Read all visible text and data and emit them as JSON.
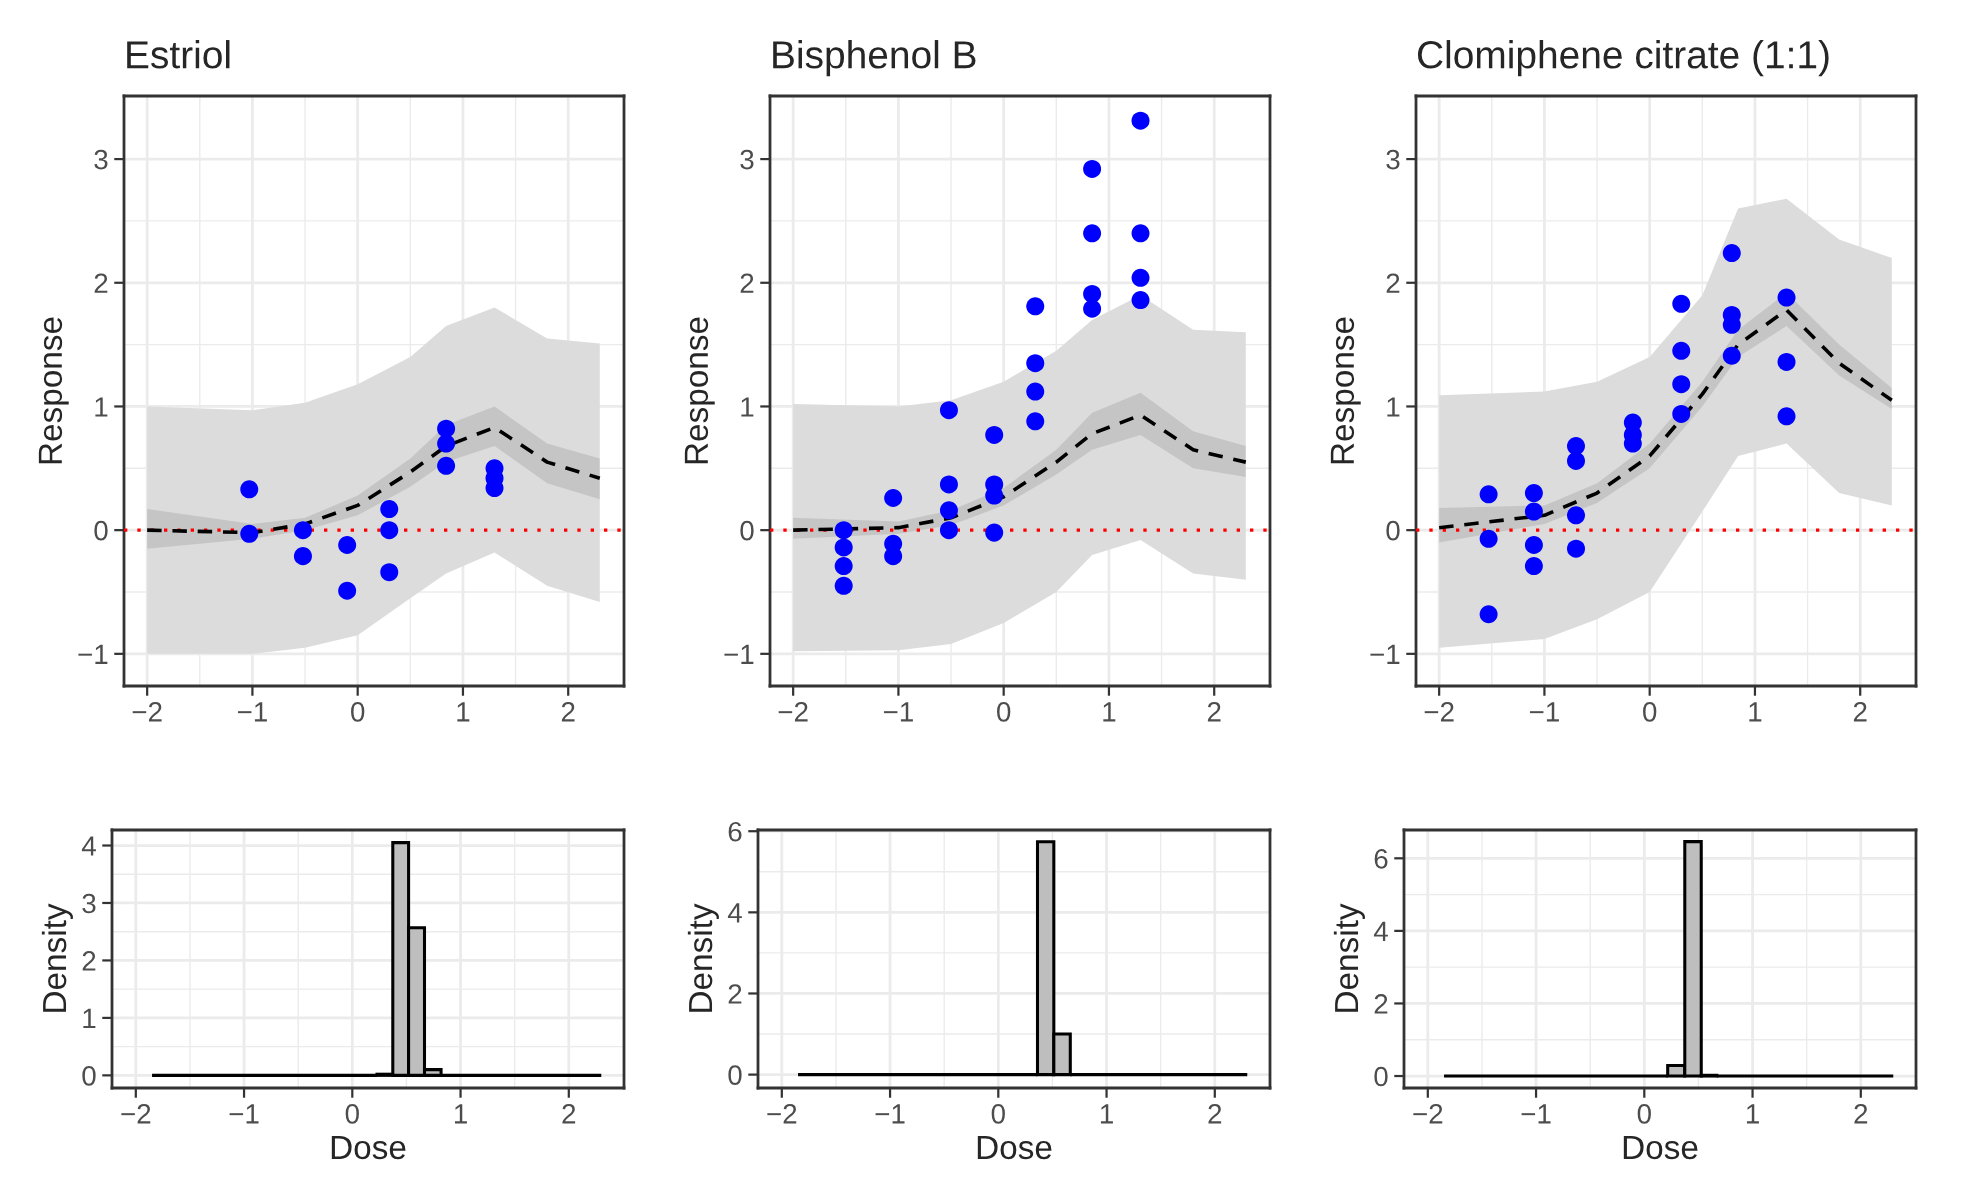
{
  "chart_data": [
    {
      "type": "scatter",
      "title": "Estriol",
      "ylabel": "Response",
      "xlim": [
        -2.22,
        2.53
      ],
      "ylim": [
        -1.26,
        3.51
      ],
      "xticks": [
        -2,
        -1,
        0,
        1,
        2
      ],
      "yticks": [
        -1,
        0,
        1,
        2,
        3
      ],
      "grid": true,
      "ref_lines": [
        {
          "axis": "y",
          "value": 0,
          "color": "#ff0000",
          "line_style": "dotted"
        }
      ],
      "series": [
        {
          "type": "line",
          "color": "#dcdcdc",
          "x": [
            -2,
            -1,
            -0.5,
            0,
            0.5,
            0.84,
            1.3,
            1.8,
            2.3
          ],
          "values": [
            null,
            null,
            null,
            null,
            null,
            null,
            null,
            null,
            null
          ],
          "lower": [
            -1.0,
            -1.0,
            -0.95,
            -0.85,
            -0.55,
            -0.35,
            -0.18,
            -0.45,
            -0.58
          ],
          "upper": [
            1.0,
            0.97,
            1.03,
            1.18,
            1.4,
            1.65,
            1.8,
            1.55,
            1.51
          ]
        },
        {
          "type": "line",
          "color": "#000000",
          "line_style": "dashed",
          "x": [
            -2,
            -1,
            -0.5,
            0,
            0.5,
            0.84,
            1.3,
            1.8,
            2.3
          ],
          "values": [
            0,
            -0.02,
            0.05,
            0.2,
            0.47,
            0.68,
            0.83,
            0.55,
            0.42
          ],
          "lower": [
            -0.15,
            -0.07,
            0.0,
            0.12,
            0.35,
            0.55,
            0.68,
            0.38,
            0.25
          ],
          "upper": [
            0.17,
            0.05,
            0.1,
            0.28,
            0.58,
            0.85,
            1.0,
            0.7,
            0.58
          ]
        },
        {
          "type": "scatter",
          "color": "#0000ff",
          "marker": "circle",
          "x": [
            -1.03,
            -1.03,
            -0.52,
            -0.52,
            -0.1,
            -0.1,
            0.3,
            0.3,
            0.3,
            0.84,
            0.84,
            0.84,
            1.3,
            1.3,
            1.3
          ],
          "values": [
            0.33,
            -0.03,
            0.0,
            -0.21,
            -0.12,
            -0.49,
            0.17,
            0.0,
            -0.34,
            0.82,
            0.7,
            0.52,
            0.5,
            0.42,
            0.34
          ]
        }
      ]
    },
    {
      "type": "scatter",
      "title": "Bisphenol B",
      "ylabel": "Response",
      "xlim": [
        -2.22,
        2.53
      ],
      "ylim": [
        -1.26,
        3.51
      ],
      "xticks": [
        -2,
        -1,
        0,
        1,
        2
      ],
      "yticks": [
        -1,
        0,
        1,
        2,
        3
      ],
      "grid": true,
      "ref_lines": [
        {
          "axis": "y",
          "value": 0,
          "color": "#ff0000",
          "line_style": "dotted"
        }
      ],
      "series": [
        {
          "type": "line",
          "color": "#dcdcdc",
          "x": [
            -2,
            -1,
            -0.5,
            0,
            0.5,
            0.84,
            1.3,
            1.8,
            2.3
          ],
          "values": [
            null,
            null,
            null,
            null,
            null,
            null,
            null,
            null,
            null
          ],
          "lower": [
            -0.98,
            -0.97,
            -0.92,
            -0.75,
            -0.5,
            -0.2,
            -0.08,
            -0.35,
            -0.4
          ],
          "upper": [
            1.02,
            1.0,
            1.05,
            1.2,
            1.45,
            1.7,
            1.9,
            1.62,
            1.6
          ]
        },
        {
          "type": "line",
          "color": "#000000",
          "line_style": "dashed",
          "x": [
            -2,
            -1,
            -0.5,
            0,
            0.5,
            0.84,
            1.3,
            1.8,
            2.3
          ],
          "values": [
            0,
            0.02,
            0.1,
            0.27,
            0.55,
            0.78,
            0.93,
            0.65,
            0.55
          ],
          "lower": [
            -0.07,
            -0.03,
            0.04,
            0.2,
            0.45,
            0.65,
            0.77,
            0.5,
            0.43
          ],
          "upper": [
            0.1,
            0.07,
            0.16,
            0.34,
            0.65,
            0.95,
            1.11,
            0.8,
            0.68
          ]
        },
        {
          "type": "scatter",
          "color": "#0000ff",
          "marker": "circle",
          "x": [
            -1.52,
            -1.52,
            -1.52,
            -1.52,
            -1.05,
            -1.05,
            -1.05,
            -0.52,
            -0.52,
            -0.52,
            -0.52,
            -0.09,
            -0.09,
            -0.09,
            -0.09,
            0.3,
            0.3,
            0.3,
            0.3,
            0.84,
            0.84,
            0.84,
            0.84,
            1.3,
            1.3,
            1.3,
            1.3
          ],
          "values": [
            0,
            -0.14,
            -0.29,
            -0.45,
            0.26,
            -0.11,
            -0.21,
            0.97,
            0.37,
            0.16,
            0.0,
            0.77,
            0.37,
            0.28,
            -0.02,
            1.81,
            1.35,
            1.12,
            0.88,
            2.92,
            2.4,
            1.91,
            1.79,
            3.31,
            2.4,
            2.04,
            1.86
          ]
        }
      ]
    },
    {
      "type": "scatter",
      "title": "Clomiphene citrate (1:1)",
      "ylabel": "Response",
      "xlim": [
        -2.22,
        2.53
      ],
      "ylim": [
        -1.26,
        3.51
      ],
      "xticks": [
        -2,
        -1,
        0,
        1,
        2
      ],
      "yticks": [
        -1,
        0,
        1,
        2,
        3
      ],
      "grid": true,
      "ref_lines": [
        {
          "axis": "y",
          "value": 0,
          "color": "#ff0000",
          "line_style": "dotted"
        }
      ],
      "series": [
        {
          "type": "line",
          "color": "#dcdcdc",
          "x": [
            -2,
            -1,
            -0.5,
            0,
            0.5,
            0.84,
            1.3,
            1.8,
            2.3
          ],
          "values": [
            null,
            null,
            null,
            null,
            null,
            null,
            null,
            null,
            null
          ],
          "lower": [
            -0.95,
            -0.88,
            -0.72,
            -0.5,
            0.15,
            0.6,
            0.7,
            0.3,
            0.2
          ],
          "upper": [
            1.09,
            1.12,
            1.2,
            1.4,
            1.9,
            2.6,
            2.68,
            2.35,
            2.2
          ]
        },
        {
          "type": "line",
          "color": "#000000",
          "line_style": "dashed",
          "x": [
            -2,
            -1,
            -0.5,
            0,
            0.5,
            0.84,
            1.3,
            1.8,
            2.3
          ],
          "values": [
            0.02,
            0.12,
            0.3,
            0.6,
            1.1,
            1.5,
            1.78,
            1.35,
            1.05
          ],
          "lower": [
            -0.1,
            0.05,
            0.22,
            0.5,
            1.0,
            1.4,
            1.65,
            1.25,
            0.98
          ],
          "upper": [
            0.18,
            0.2,
            0.38,
            0.7,
            1.2,
            1.62,
            1.92,
            1.5,
            1.15
          ]
        },
        {
          "type": "scatter",
          "color": "#0000ff",
          "marker": "circle",
          "x": [
            -1.53,
            -1.53,
            -1.53,
            -1.1,
            -1.1,
            -1.1,
            -1.1,
            -0.7,
            -0.7,
            -0.7,
            -0.7,
            -0.16,
            -0.16,
            -0.16,
            0.3,
            0.3,
            0.3,
            0.3,
            0.78,
            0.78,
            0.78,
            0.78,
            1.3,
            1.3,
            1.3
          ],
          "values": [
            0.29,
            -0.07,
            -0.68,
            0.3,
            0.15,
            -0.12,
            -0.29,
            0.68,
            0.56,
            0.12,
            -0.15,
            0.87,
            0.77,
            0.7,
            1.83,
            1.45,
            1.18,
            0.94,
            2.24,
            1.74,
            1.66,
            1.41,
            1.88,
            1.36,
            0.92
          ]
        }
      ]
    },
    {
      "type": "histogram",
      "xlabel": "Dose",
      "ylabel": "Density",
      "xlim": [
        -2.22,
        2.51
      ],
      "ylim": [
        -0.22,
        4.27
      ],
      "xticks": [
        -2,
        -1,
        0,
        1,
        2
      ],
      "yticks": [
        0,
        1,
        2,
        3,
        4
      ],
      "grid": true,
      "colors": [
        "#000000",
        "#bebebe",
        "#bebebe",
        "#bebebe",
        "#bebebe",
        "#000000"
      ],
      "bins": [
        -1.85,
        0.228,
        0.374,
        0.52,
        0.667,
        0.82,
        2.3
      ],
      "values": [
        0,
        0.02,
        4.05,
        2.57,
        0.1,
        0
      ]
    },
    {
      "type": "histogram",
      "xlabel": "Dose",
      "ylabel": "Density",
      "xlim": [
        -2.22,
        2.51
      ],
      "ylim": [
        -0.33,
        6.03
      ],
      "xticks": [
        -2,
        -1,
        0,
        1,
        2
      ],
      "yticks": [
        0,
        2,
        4,
        6
      ],
      "grid": true,
      "colors": [
        "#000000",
        "#bebebe",
        "#bebebe",
        "#000000"
      ],
      "bins": [
        -1.85,
        0.362,
        0.513,
        0.665,
        2.3
      ],
      "values": [
        0,
        5.74,
        1.0,
        0
      ]
    },
    {
      "type": "histogram",
      "xlabel": "Dose",
      "ylabel": "Density",
      "xlim": [
        -2.22,
        2.51
      ],
      "ylim": [
        -0.33,
        6.78
      ],
      "xticks": [
        -2,
        -1,
        0,
        1,
        2
      ],
      "yticks": [
        0,
        2,
        4,
        6
      ],
      "grid": true,
      "colors": [
        "#000000",
        "#bebebe",
        "#bebebe",
        "#bebebe",
        "#000000"
      ],
      "bins": [
        -1.85,
        0.216,
        0.374,
        0.526,
        0.67,
        2.3
      ],
      "values": [
        0,
        0.29,
        6.46,
        0.02,
        0
      ]
    }
  ]
}
